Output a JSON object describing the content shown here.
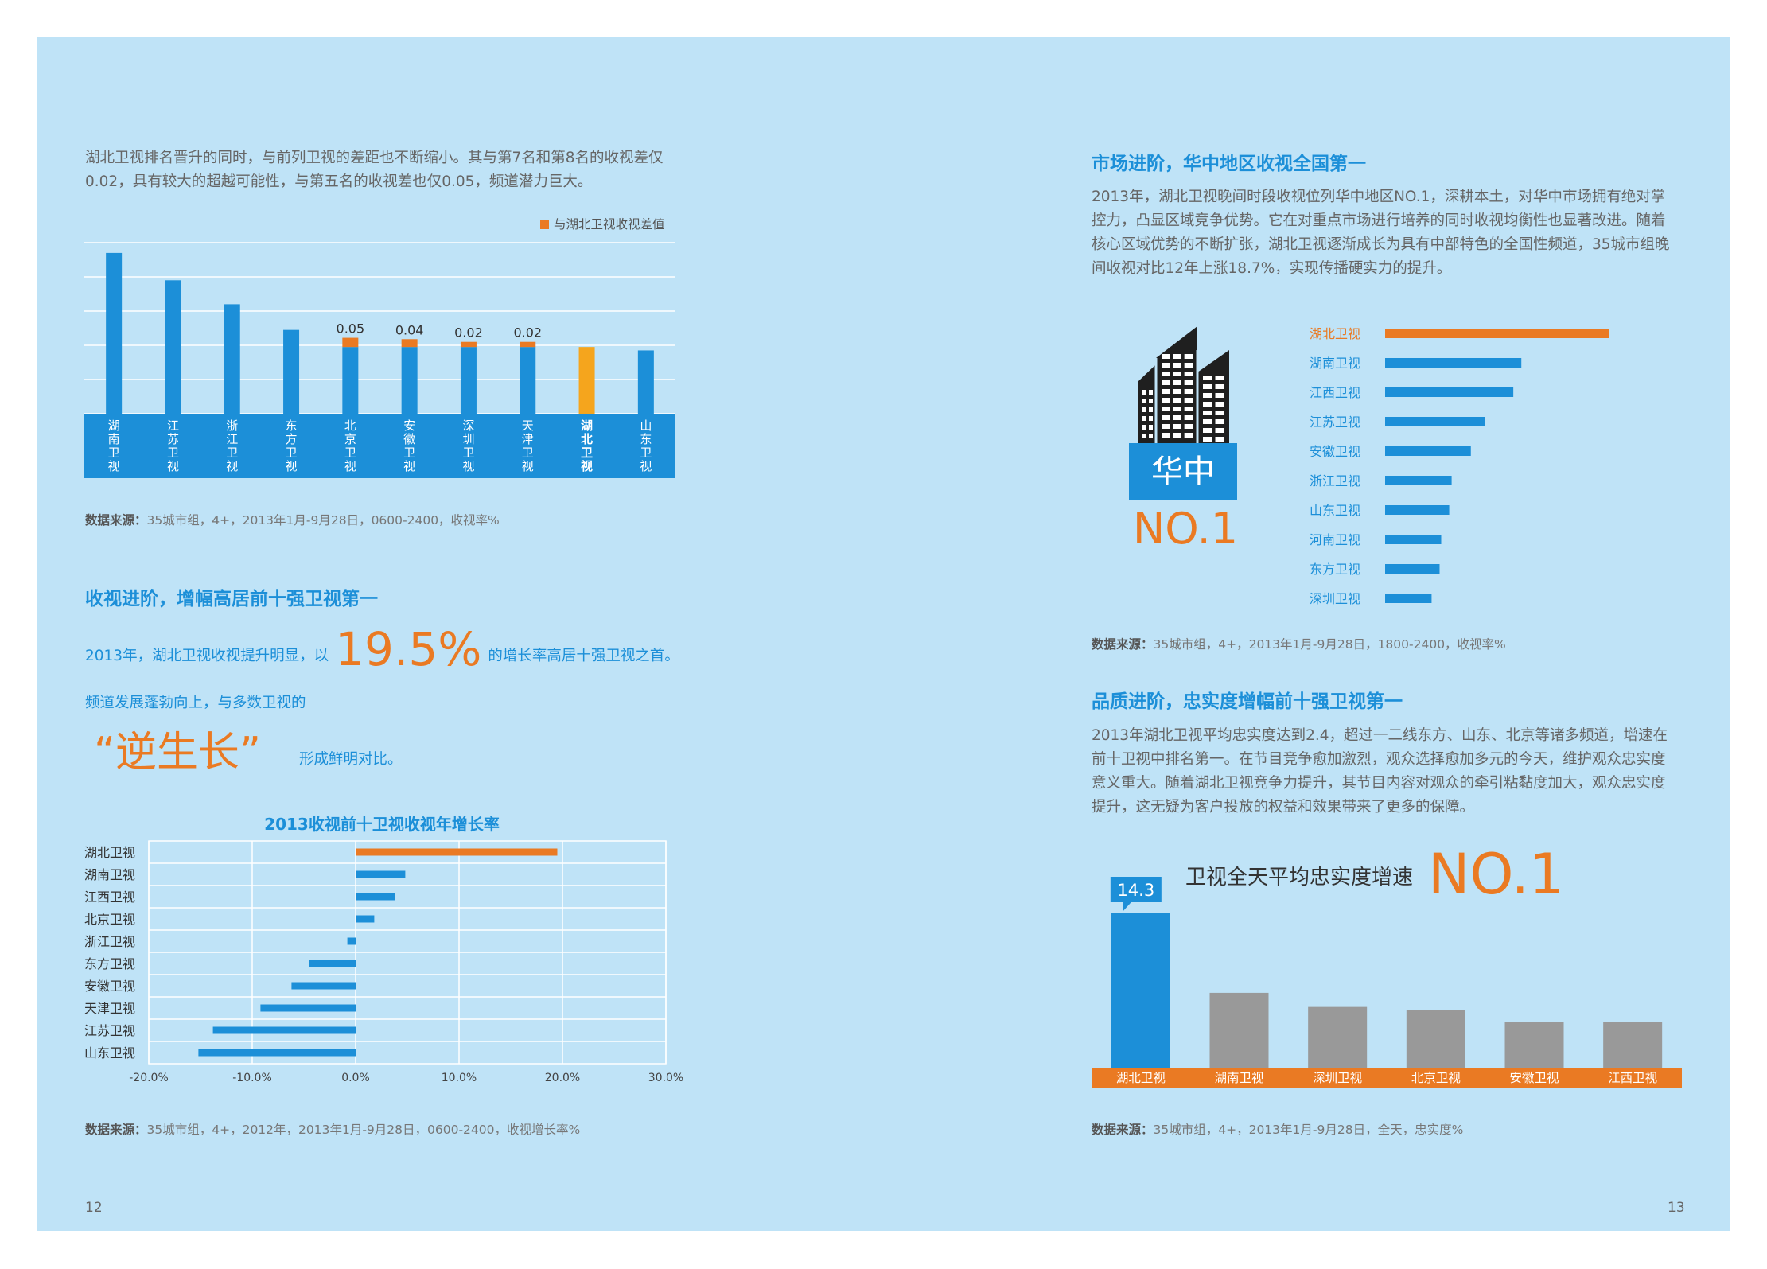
{
  "left_page": {
    "intro_lines": [
      "湖北卫视排名晋升的同时，与前列卫视的差距也不断缩小。其与第7名和第8名的收视差仅",
      "0.02，具有较大的超越可能性，与第五名的收视差也仅0.05，频道潜力巨大。"
    ],
    "source1_label": "数据来源：",
    "source1": "35城市组，4+，2013年1月-9月28日，0600-2400，收视率%",
    "heading2": "收视进阶，增幅高居前十强卫视第一",
    "growth_pre": "2013年，湖北卫视收视提升明显，以",
    "growth_big": "19.5%",
    "growth_post": "的增长率高居十强卫视之首。",
    "growth_line2": "频道发展蓬勃向上，与多数卫视的",
    "quote_big": "“逆生长”",
    "quote_post": "形成鲜明对比。",
    "source2_label": "数据来源：",
    "source2": "35城市组，4+，2012年，2013年1月-9月28日，0600-2400，收视增长率%",
    "page_number": "12"
  },
  "right_page": {
    "heading1": "市场进阶，华中地区收视全国第一",
    "para1_lines": [
      "2013年，湖北卫视晚间时段收视位列华中地区NO.1，深耕本土，对华中市场拥有绝对掌",
      "控力，凸显区域竞争优势。它在对重点市场进行培养的同时收视均衡性也显著改进。随着",
      "核心区域优势的不断扩张，湖北卫视逐渐成长为具有中部特色的全国性频道，35城市组晚",
      "间收视对比12年上涨18.7%，实现传播硬实力的提升。"
    ],
    "badge_region": "华中",
    "badge_rank": "NO.1",
    "source3_label": "数据来源：",
    "source3": "35城市组，4+，2013年1月-9月28日，1800-2400，收视率%",
    "heading2": "品质进阶，忠实度增幅前十强卫视第一",
    "para2_lines": [
      "2013年湖北卫视平均忠实度达到2.4，超过一二线东方、山东、北京等诸多频道，增速在",
      "前十卫视中排名第一。在节目竞争愈加激烈，观众选择愈加多元的今天，维护观众忠实度",
      "意义重大。随着湖北卫视竞争力提升，其节目内容对观众的牵引粘黏度加大，观众忠实度",
      "提升，这无疑为客户投放的权益和效果带来了更多的保障。"
    ],
    "loyalty_title": "卫视全天平均忠实度增速",
    "loyalty_rank": "NO.1",
    "source4_label": "数据来源：",
    "source4": "35城市组，4+，2013年1月-9月28日，全天，忠实度%",
    "page_number": "13"
  },
  "colors": {
    "blue": "#1c8fd8",
    "orange": "#ea7a23",
    "yellow": "#f5a51d",
    "gray": "#999999",
    "dark": "#1f1f1f",
    "background": "#bfe3f7"
  },
  "icons": {
    "building": "city-buildings-icon"
  },
  "chart_data": [
    {
      "id": "ranking",
      "type": "bar",
      "legend": "与湖北卫视收视差值",
      "legend_position": "top-right",
      "grid": true,
      "categories": [
        "湖南卫视",
        "江苏卫视",
        "浙江卫视",
        "东方卫视",
        "北京卫视",
        "安徽卫视",
        "深圳卫视",
        "天津卫视",
        "湖北卫视",
        "山东卫视"
      ],
      "values": [
        0.47,
        0.39,
        0.32,
        0.245,
        0.195,
        0.195,
        0.195,
        0.195,
        0.195,
        0.185
      ],
      "gap_values": [
        null,
        null,
        null,
        null,
        0.05,
        0.04,
        0.02,
        0.02,
        null,
        null
      ],
      "gap_labels": [
        "",
        "",
        "",
        "",
        "0.05",
        "0.04",
        "0.02",
        "0.02",
        "",
        ""
      ],
      "highlight": "湖北卫视",
      "ylim": [
        0,
        0.5
      ]
    },
    {
      "id": "growth",
      "type": "bar",
      "orientation": "horizontal",
      "title": "2013收视前十卫视收视年增长率",
      "grid": true,
      "categories": [
        "湖北卫视",
        "湖南卫视",
        "江西卫视",
        "北京卫视",
        "浙江卫视",
        "东方卫视",
        "安徽卫视",
        "天津卫视",
        "江苏卫视",
        "山东卫视"
      ],
      "values": [
        19.5,
        4.8,
        3.8,
        1.8,
        -0.8,
        -4.5,
        -6.2,
        -9.2,
        -13.8,
        -15.2
      ],
      "highlight": "湖北卫视",
      "xlim": [
        -20,
        30
      ],
      "xticks": [
        "-20.0%",
        "-10.0%",
        "0.0%",
        "10.0%",
        "20.0%",
        "30.0%"
      ]
    },
    {
      "id": "central",
      "type": "bar",
      "orientation": "horizontal",
      "categories": [
        "湖北卫视",
        "湖南卫视",
        "江西卫视",
        "江苏卫视",
        "安徽卫视",
        "浙江卫视",
        "山东卫视",
        "河南卫视",
        "东方卫视",
        "深圳卫视"
      ],
      "values": [
        2.8,
        1.7,
        1.6,
        1.25,
        1.07,
        0.83,
        0.8,
        0.7,
        0.68,
        0.58
      ],
      "highlight": "湖北卫视"
    },
    {
      "id": "loyalty",
      "type": "bar",
      "categories": [
        "湖北卫视",
        "湖南卫视",
        "深圳卫视",
        "北京卫视",
        "安徽卫视",
        "江西卫视"
      ],
      "values": [
        14.3,
        6.9,
        5.6,
        5.3,
        4.2,
        4.2
      ],
      "value_label": "14.3",
      "highlight": "湖北卫视"
    }
  ]
}
